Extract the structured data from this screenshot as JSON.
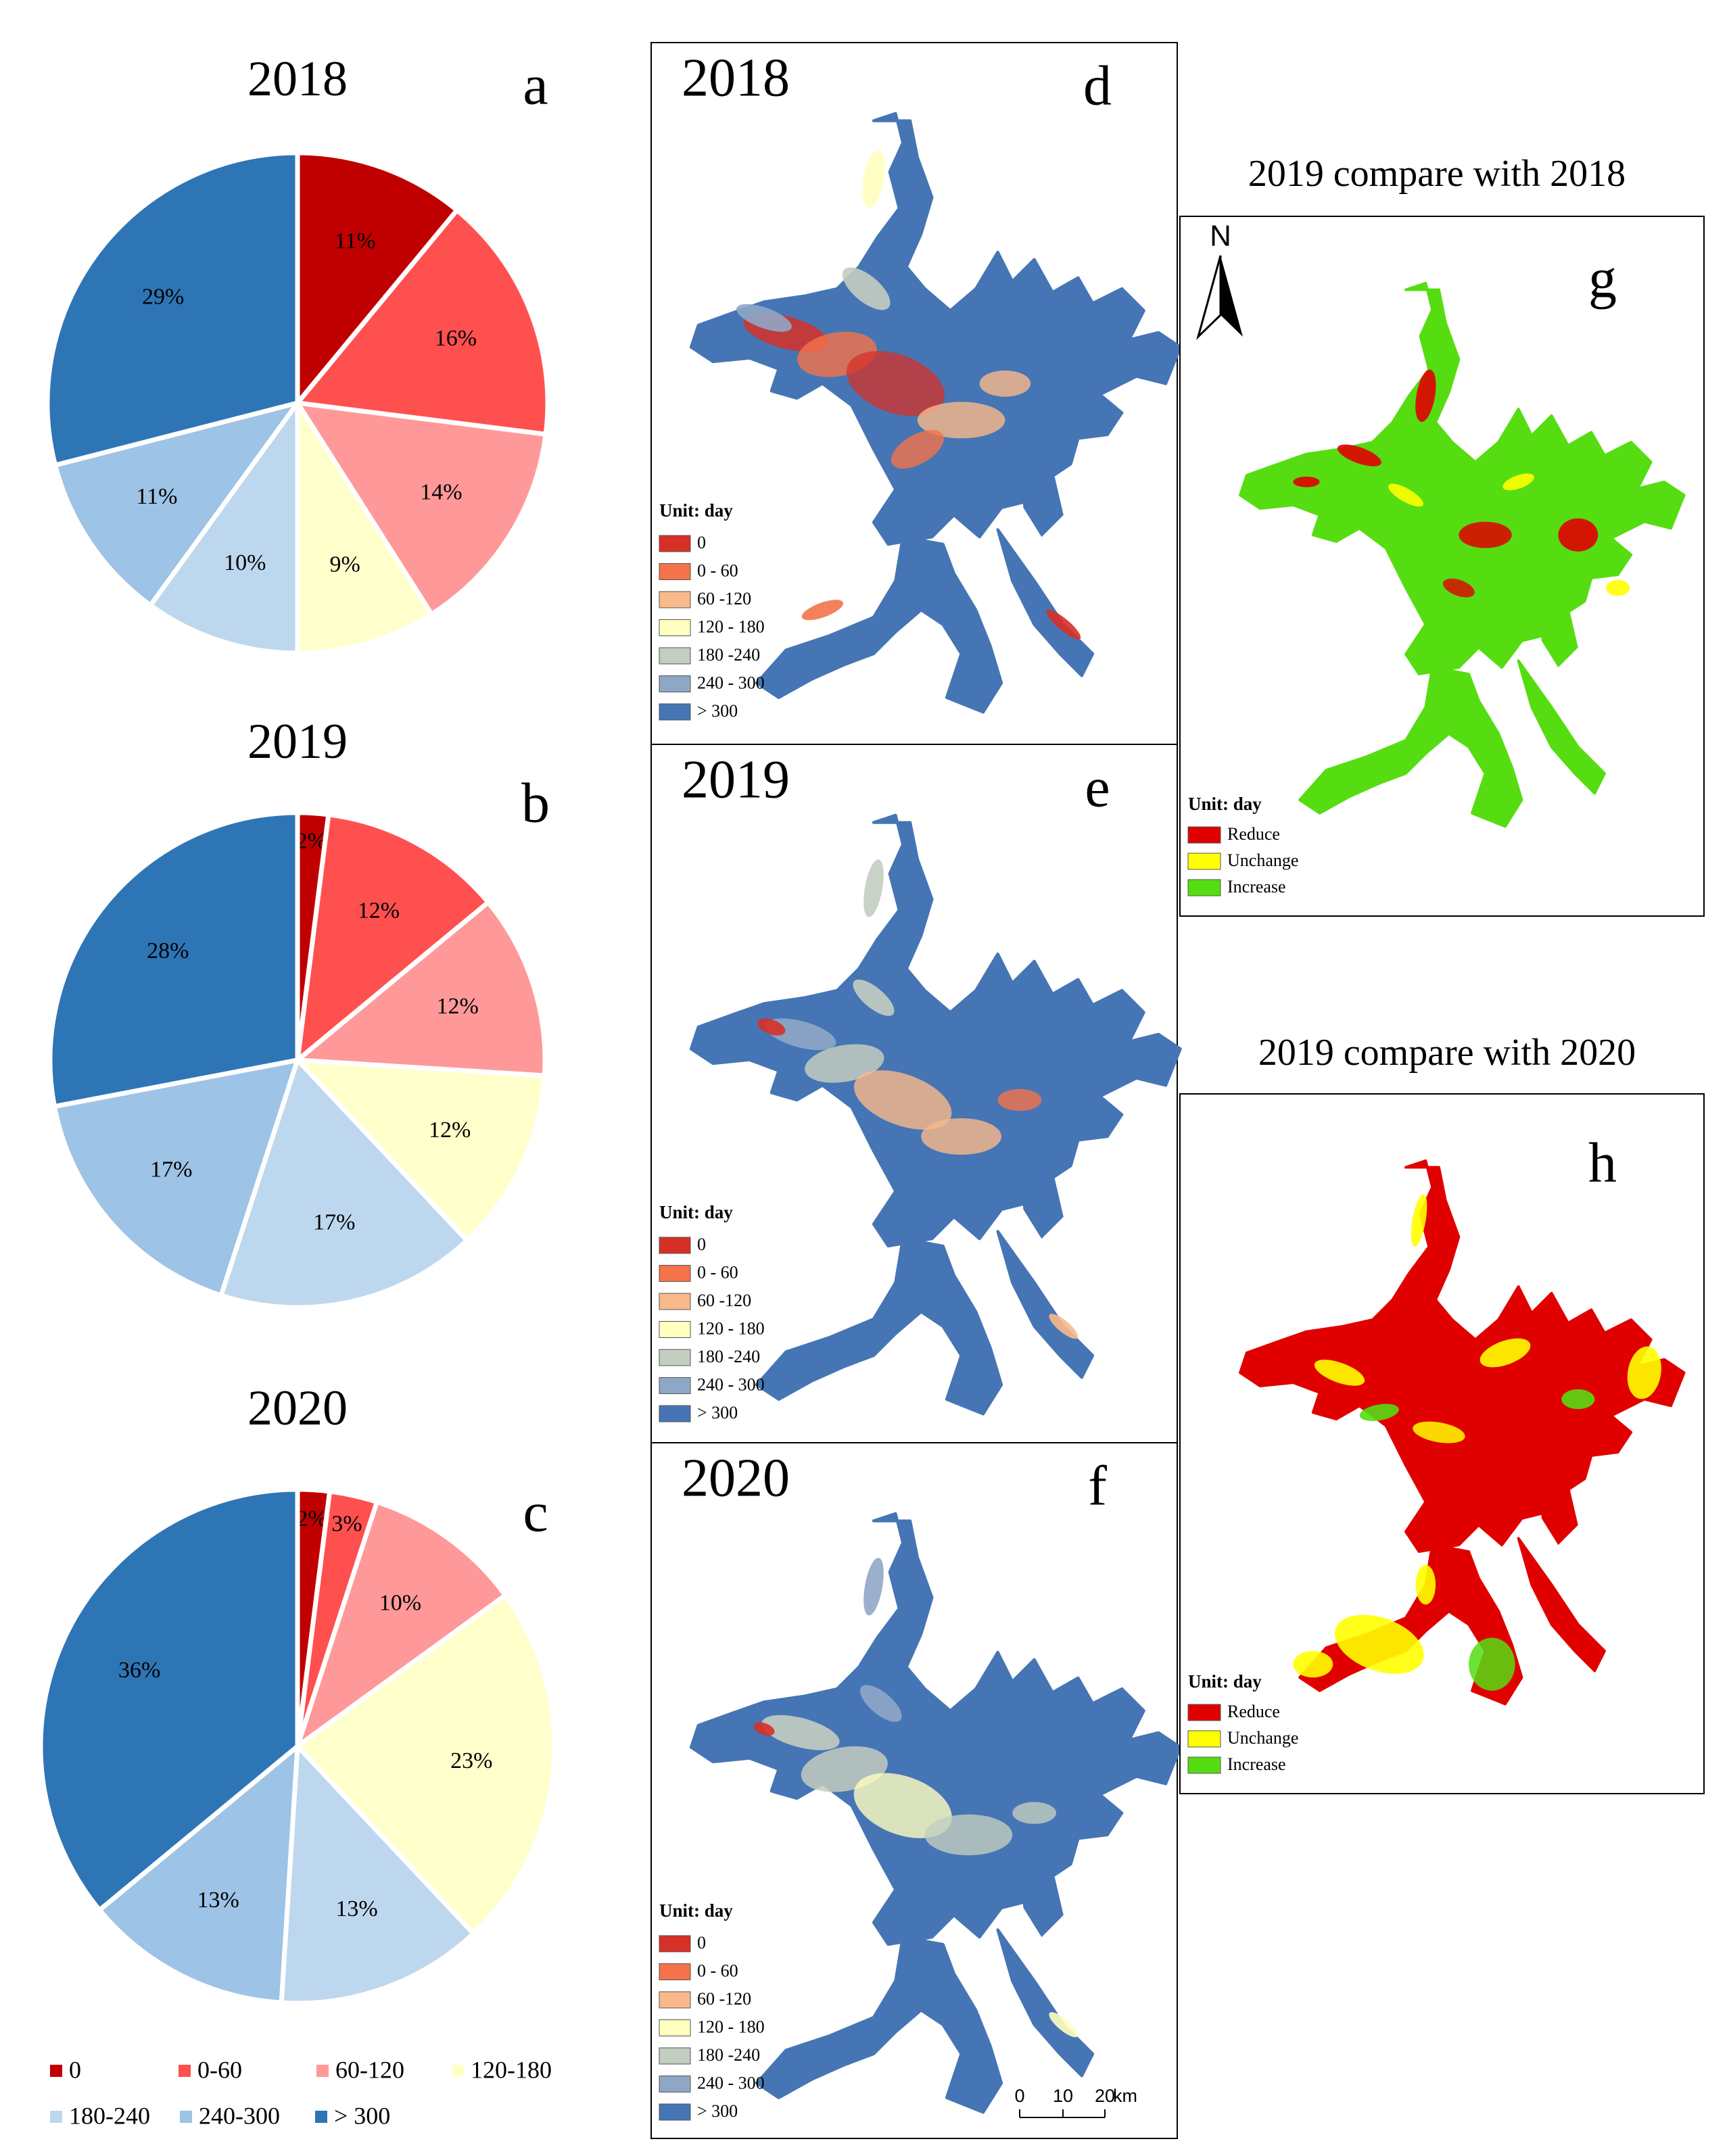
{
  "colors": {
    "c0": "#c00000",
    "c0_60": "#ff5050",
    "c60_120": "#ff9999",
    "c120_180": "#ffffcc",
    "c180_240": "#bdd7ee",
    "c240_300": "#9dc3e6",
    "c300": "#2e75b6",
    "map_0": "#d73027",
    "map_0_60": "#f4734a",
    "map_60_120": "#f9b98a",
    "map_120_180": "#ffffbf",
    "map_180_240": "#c3cdc0",
    "map_240_300": "#8fa7c6",
    "map_300": "#4575b4",
    "reduce": "#e00000",
    "unchange": "#ffff00",
    "increase": "#55dd11"
  },
  "chart_data": [
    {
      "type": "pie",
      "panel": "a",
      "title": "2018",
      "categories": [
        "0",
        "0-60",
        "60-120",
        "120-180",
        "180-240",
        "240-300",
        "> 300"
      ],
      "values": [
        11,
        16,
        14,
        9,
        10,
        11,
        29
      ],
      "labels": [
        "11%",
        "16%",
        "14%",
        "9%",
        "10%",
        "11%",
        "29%"
      ]
    },
    {
      "type": "pie",
      "panel": "b",
      "title": "2019",
      "categories": [
        "0",
        "0-60",
        "60-120",
        "120-180",
        "180-240",
        "240-300",
        "> 300"
      ],
      "values": [
        2,
        12,
        12,
        12,
        17,
        17,
        28
      ],
      "labels": [
        "2%",
        "12%",
        "12%",
        "12%",
        "17%",
        "17%",
        "28%"
      ]
    },
    {
      "type": "pie",
      "panel": "c",
      "title": "2020",
      "categories": [
        "0",
        "0-60",
        "60-120",
        "120-180",
        "180-240",
        "240-300",
        "> 300"
      ],
      "values": [
        2,
        3,
        10,
        23,
        13,
        13,
        36
      ],
      "labels": [
        "2%",
        "3%",
        "10%",
        "23%",
        "13%",
        "13%",
        "36%"
      ]
    }
  ],
  "pie_legend": {
    "entries": [
      "0",
      "0-60",
      "60-120",
      "120-180",
      "180-240",
      "240-300",
      "> 300"
    ]
  },
  "maps": [
    {
      "panel": "d",
      "year": "2018"
    },
    {
      "panel": "e",
      "year": "2019"
    },
    {
      "panel": "f",
      "year": "2020"
    }
  ],
  "map_legend": {
    "unit": "Unit: day",
    "entries": [
      "0",
      "0 - 60",
      "60 -120",
      "120 - 180",
      "180 -240",
      "240 - 300",
      "> 300"
    ]
  },
  "comparisons": [
    {
      "panel": "g",
      "title": "2019 compare with 2018"
    },
    {
      "panel": "h",
      "title": "2019 compare with 2020"
    }
  ],
  "compare_legend": {
    "unit": "Unit: day",
    "entries": [
      "Reduce",
      "Unchange",
      "Increase"
    ]
  },
  "north_label": "N",
  "scale_bar": {
    "ticks": [
      "0",
      "10",
      "20"
    ],
    "unit": "km"
  }
}
